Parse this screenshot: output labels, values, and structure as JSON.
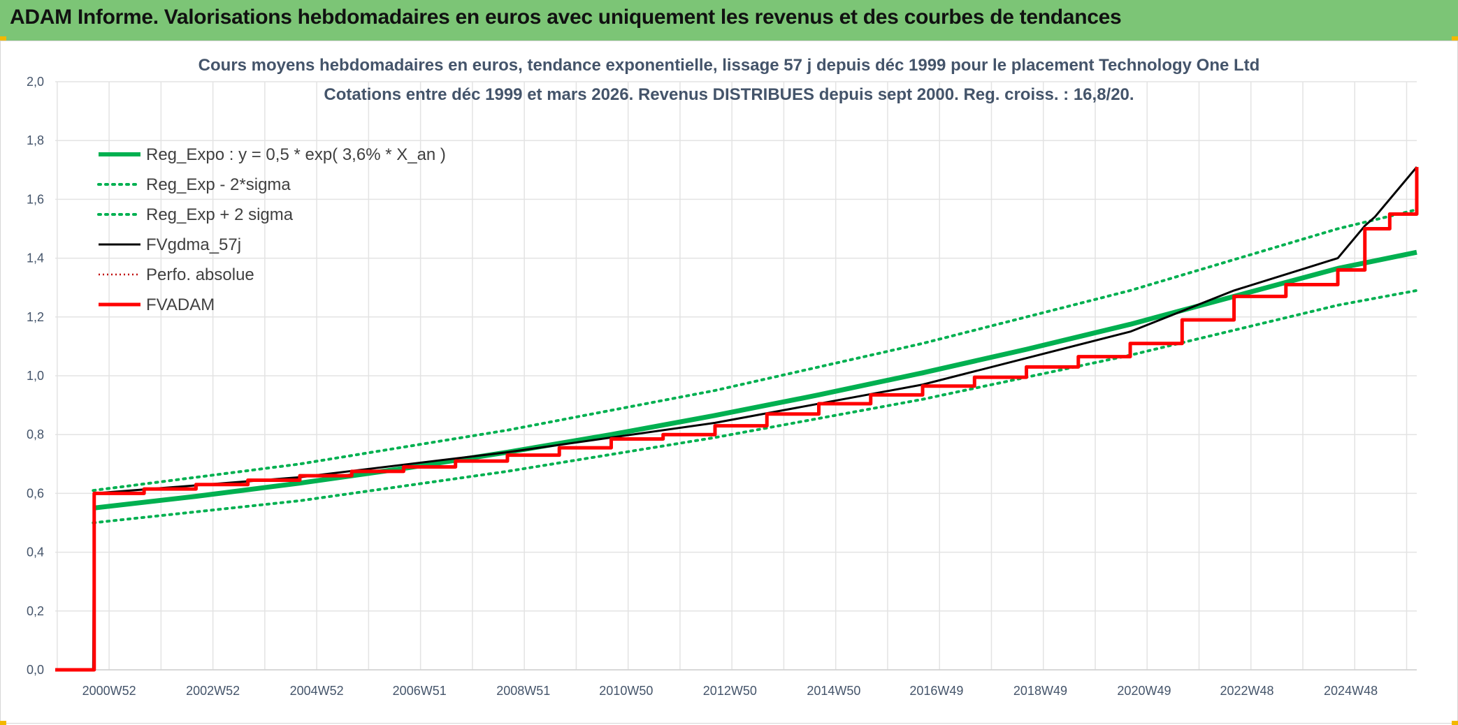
{
  "banner": {
    "title": "ADAM Informe. Valorisations hebdomadaires en euros avec uniquement les revenus et des courbes de tendances"
  },
  "colors": {
    "banner_bg": "#7cc576",
    "accent_corner": "#f3b800",
    "reg_expo": "#00b050",
    "fv_gdma": "#000000",
    "fvadam": "#ff0000",
    "perfo": "#c00000",
    "grid": "#e3e3e3",
    "text": "#44546a"
  },
  "chart_data": {
    "type": "line",
    "title": [
      "Cours moyens hebdomadaires en euros, tendance exponentielle, lissage 57 j depuis déc 1999 pour le placement Technology One Ltd",
      "Cotations entre déc 1999 et mars 2026. Revenus DISTRIBUES depuis sept 2000. Reg. croiss. : 16,8/20."
    ],
    "x_range": [
      "1999W50",
      "2026W10"
    ],
    "x_ticks": [
      "2000W52",
      "2002W52",
      "2004W52",
      "2006W51",
      "2008W51",
      "2010W50",
      "2012W50",
      "2014W50",
      "2016W49",
      "2018W49",
      "2020W49",
      "2022W48",
      "2024W48"
    ],
    "ylim": [
      0,
      2
    ],
    "y_ticks": [
      "0,0",
      "0,2",
      "0,4",
      "0,6",
      "0,8",
      "1,0",
      "1,2",
      "1,4",
      "1,6",
      "1,8",
      "2,0"
    ],
    "grid": true,
    "legend_position": "top-left",
    "series": [
      {
        "name": "Reg_Expo : y = 0,5 * exp( 3,6% *  X_an )",
        "style": "solid-thick",
        "color": "#00b050",
        "x": [
          "2000W36",
          "2002W35",
          "2004W35",
          "2006W35",
          "2008W35",
          "2010W35",
          "2012W35",
          "2014W35",
          "2016W35",
          "2018W35",
          "2020W35",
          "2022W35",
          "2024W35",
          "2026W10"
        ],
        "y": [
          0.55,
          0.59,
          0.635,
          0.685,
          0.74,
          0.8,
          0.865,
          0.935,
          1.01,
          1.09,
          1.175,
          1.27,
          1.365,
          1.42
        ]
      },
      {
        "name": "Reg_Exp - 2*sigma",
        "style": "dotted",
        "color": "#00b050",
        "x": [
          "2000W36",
          "2004W35",
          "2008W35",
          "2012W35",
          "2016W35",
          "2020W35",
          "2024W35",
          "2026W10"
        ],
        "y": [
          0.5,
          0.575,
          0.675,
          0.79,
          0.92,
          1.07,
          1.24,
          1.29
        ]
      },
      {
        "name": "Reg_Exp + 2 sigma",
        "style": "dotted",
        "color": "#00b050",
        "x": [
          "2000W36",
          "2004W35",
          "2008W35",
          "2012W35",
          "2016W35",
          "2020W35",
          "2024W35",
          "2026W10"
        ],
        "y": [
          0.61,
          0.7,
          0.815,
          0.95,
          1.11,
          1.29,
          1.5,
          1.565
        ]
      },
      {
        "name": "FVgdma_57j",
        "style": "solid",
        "color": "#000000",
        "x": [
          "1999W50",
          "2000W36",
          "2000W37",
          "2004W35",
          "2008W35",
          "2012W35",
          "2016W35",
          "2020W35",
          "2022W35",
          "2024W35",
          "2025W10",
          "2025W20",
          "2026W10"
        ],
        "y": [
          0.0,
          0.0,
          0.6,
          0.655,
          0.74,
          0.84,
          0.97,
          1.15,
          1.29,
          1.4,
          1.51,
          1.54,
          1.71
        ]
      },
      {
        "name": "Perfo. absolue",
        "style": "dotted-thin",
        "color": "#c00000",
        "x": [],
        "y": []
      },
      {
        "name": "FVADAM",
        "style": "step-thick",
        "color": "#ff0000",
        "x": [
          "1999W50",
          "2000W36",
          "2000W37",
          "2001W35",
          "2002W35",
          "2003W35",
          "2004W35",
          "2005W35",
          "2006W35",
          "2007W35",
          "2008W35",
          "2009W35",
          "2010W35",
          "2011W35",
          "2012W35",
          "2013W35",
          "2014W35",
          "2015W35",
          "2016W35",
          "2017W35",
          "2018W35",
          "2019W35",
          "2020W35",
          "2021W35",
          "2022W35",
          "2023W35",
          "2024W35",
          "2025W10",
          "2025W35",
          "2026W10"
        ],
        "y": [
          0.0,
          0.0,
          0.6,
          0.615,
          0.63,
          0.645,
          0.66,
          0.675,
          0.69,
          0.71,
          0.73,
          0.755,
          0.785,
          0.8,
          0.83,
          0.87,
          0.905,
          0.935,
          0.965,
          0.995,
          1.03,
          1.065,
          1.11,
          1.19,
          1.27,
          1.31,
          1.36,
          1.5,
          1.55,
          1.71
        ]
      }
    ]
  }
}
